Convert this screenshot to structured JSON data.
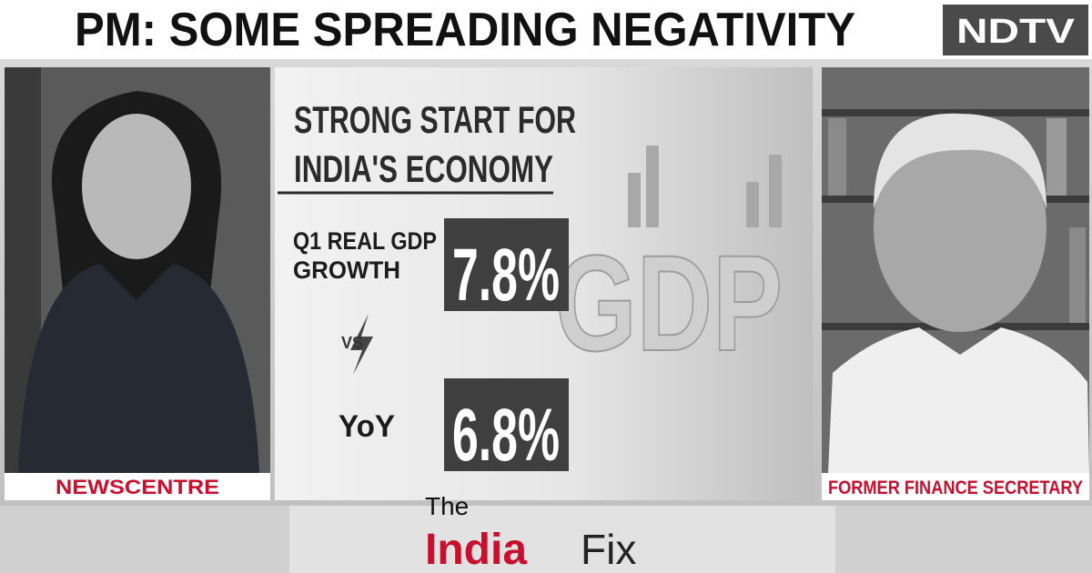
{
  "header": {
    "title": "PM: SOME SPREADING NEGATIVITY",
    "logo": "NDTV"
  },
  "graphic": {
    "title_lines": [
      "STRONG START FOR",
      "INDIA'S ECONOMY"
    ],
    "row1": {
      "label_lines": [
        "Q1 REAL GDP",
        "GROWTH"
      ],
      "value": "7.8%"
    },
    "versus": "VS",
    "row2": {
      "label": "YoY",
      "value": "6.8%"
    },
    "background_text": "GDP"
  },
  "left_panel": {
    "label": "NEWSCENTRE"
  },
  "right_panel": {
    "label": "FORMER FINANCE SECRETARY"
  },
  "footer": {
    "brand_top": "The",
    "brand_main": "India",
    "brand_end": "Fix"
  }
}
